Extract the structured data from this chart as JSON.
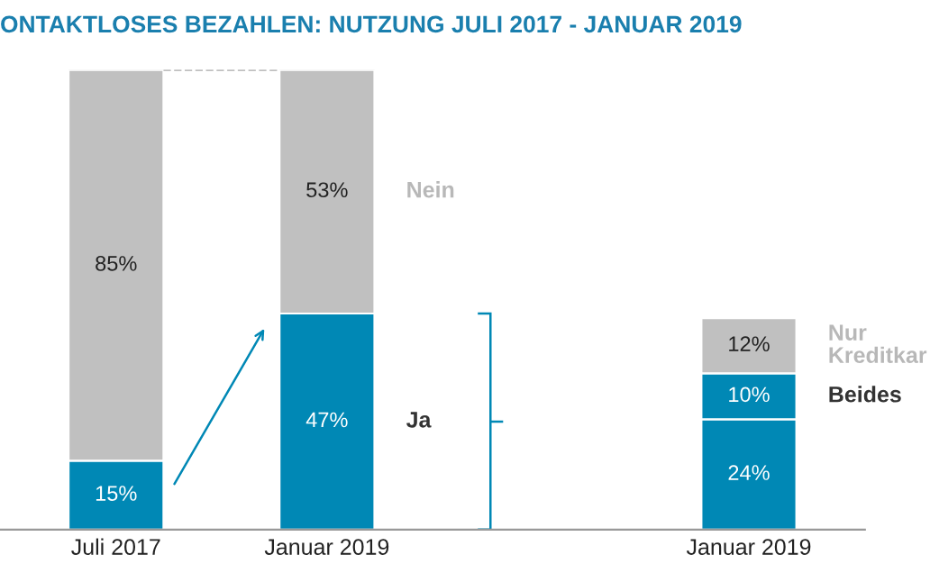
{
  "chart_data": {
    "type": "bar",
    "stacked": true,
    "legend": false,
    "grid": false,
    "title": "ONTAKTLOSES BEZAHLEN: NUTZUNG JULI 2017 - JANUAR 2019",
    "categories": [
      "Juli 2017",
      "Januar 2019",
      null,
      "Januar 2019"
    ],
    "series": [
      {
        "name": "Ja",
        "color": "#0088b5",
        "values": [
          15,
          47,
          null,
          null
        ],
        "value_labels": [
          "15%",
          "47%",
          null,
          null
        ]
      },
      {
        "name": "Nein",
        "color": "#c0c0c0",
        "values": [
          85,
          53,
          null,
          null
        ],
        "value_labels": [
          "85%",
          "53%",
          null,
          null
        ]
      },
      {
        "color": "#0088b5",
        "values": [
          null,
          null,
          null,
          24
        ],
        "value_labels": [
          null,
          null,
          null,
          "24%"
        ]
      },
      {
        "name": "Beides",
        "color": "#0088b5",
        "values": [
          null,
          null,
          null,
          10
        ],
        "value_labels": [
          null,
          null,
          null,
          "10%"
        ]
      },
      {
        "name": "Nur\nKreditkar",
        "color": "#c0c0c0",
        "values": [
          null,
          null,
          null,
          12
        ],
        "value_labels": [
          null,
          null,
          null,
          "12%"
        ]
      }
    ]
  }
}
